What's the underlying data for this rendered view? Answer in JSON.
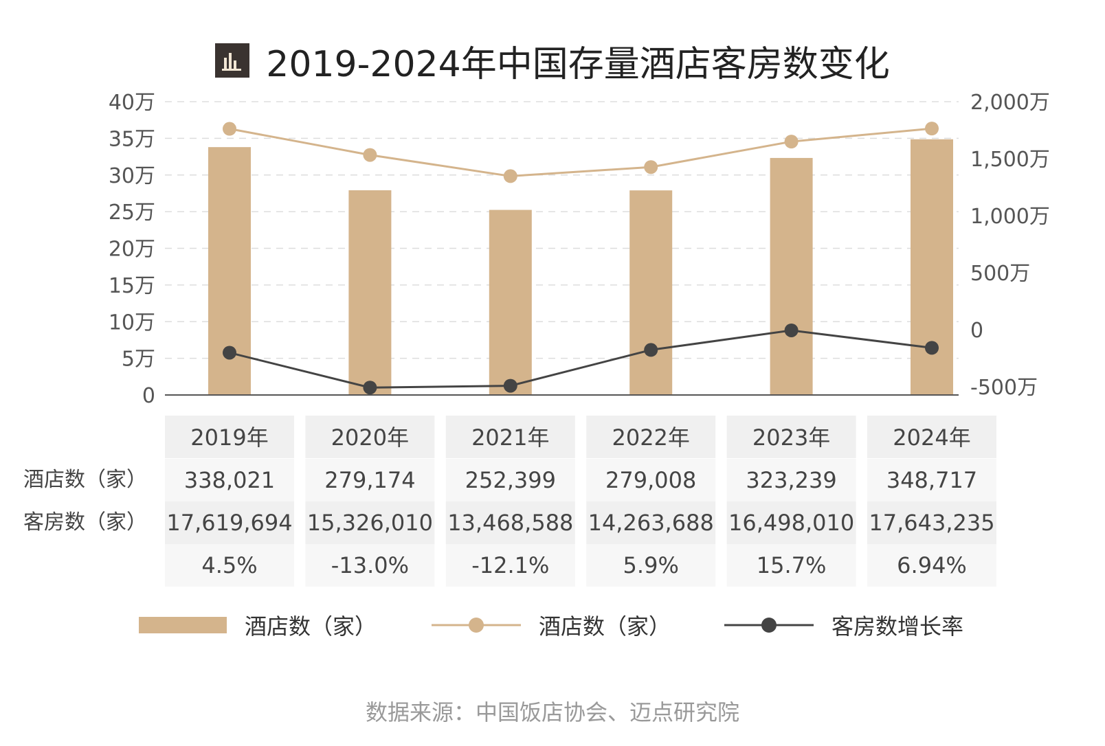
{
  "title": "2019-2024年中国存量酒店客房数变化",
  "title_icon": "bar-chart-icon",
  "source": "数据来源：中国饭店协会、迈点研究院",
  "colors": {
    "bar": "#D4B48C",
    "hotel_line": "#D4B48C",
    "growth_line": "#444444",
    "grid": "#DDDDDD",
    "table_header_bg": "#F0F0F0",
    "table_alt_bg": "#F7F7F7",
    "icon_bg": "#3A3330"
  },
  "chart_data": {
    "type": "bar",
    "title": "2019-2024年中国存量酒店客房数变化",
    "categories": [
      "2019年",
      "2020年",
      "2021年",
      "2022年",
      "2023年",
      "2024年"
    ],
    "left_axis": {
      "ylim": [
        0,
        400000
      ],
      "ticks": [
        0,
        50000,
        100000,
        150000,
        200000,
        250000,
        300000,
        350000,
        400000
      ],
      "tick_labels": [
        "0",
        "5万",
        "10万",
        "15万",
        "20万",
        "25万",
        "30万",
        "35万",
        "40万"
      ]
    },
    "right_axis": {
      "ylim": [
        -5000000,
        20000000
      ],
      "ticks": [
        -5000000,
        0,
        5000000,
        10000000,
        15000000,
        20000000
      ],
      "tick_labels": [
        "-500万",
        "0",
        "500万",
        "1,000万",
        "1,500万",
        "2,000万"
      ]
    },
    "grid": true,
    "legend_position": "bottom",
    "series": [
      {
        "name": "酒店数（家）",
        "type": "bar",
        "axis": "left",
        "values": [
          338021,
          279174,
          252399,
          279008,
          323239,
          348717
        ]
      },
      {
        "name": "酒店数（家）",
        "type": "line",
        "axis": "right",
        "values": [
          17619694,
          15326010,
          13468588,
          14263688,
          16498010,
          17643235
        ]
      },
      {
        "name": "客房数增长率",
        "type": "line",
        "values": [
          4.5,
          -13.0,
          -12.1,
          5.9,
          15.7,
          6.94
        ]
      }
    ],
    "table": {
      "rows": [
        {
          "label": "酒店数（家）",
          "cells": [
            "338,021",
            "279,174",
            "252,399",
            "279,008",
            "323,239",
            "348,717"
          ]
        },
        {
          "label": "客房数（家）",
          "cells": [
            "17,619,694",
            "15,326,010",
            "13,468,588",
            "14,263,688",
            "16,498,010",
            "17,643,235"
          ]
        },
        {
          "label": "",
          "cells": [
            "4.5%",
            "-13.0%",
            "-12.1%",
            "5.9%",
            "15.7%",
            "6.94%"
          ]
        }
      ]
    }
  }
}
